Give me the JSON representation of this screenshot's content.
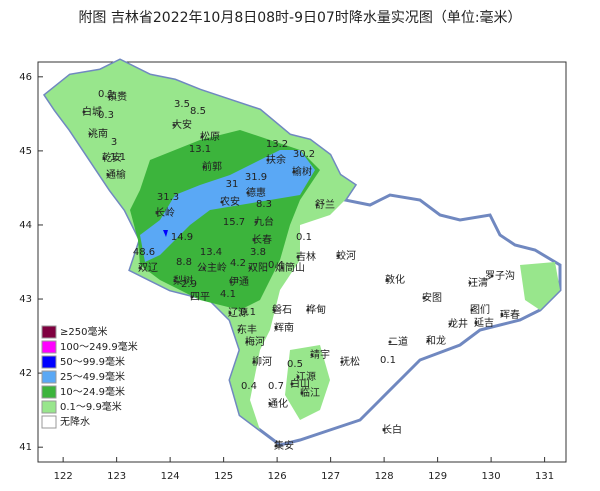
{
  "title": "附图 吉林省2022年10月8日08时-9日07时降水量实况图（单位:毫米）",
  "map": {
    "xlim": [
      121.53,
      131.4
    ],
    "ylim": [
      40.8,
      46.2
    ],
    "xticks": [
      122,
      123,
      124,
      125,
      126,
      127,
      128,
      129,
      130,
      131
    ],
    "yticks": [
      41,
      42,
      43,
      44,
      45,
      46
    ]
  },
  "legend": [
    {
      "label": "≥250毫米",
      "color": "#7f003f"
    },
    {
      "label": "100～249.9毫米",
      "color": "#ff00ff"
    },
    {
      "label": "50～99.9毫米",
      "color": "#0000ff"
    },
    {
      "label": "25～49.9毫米",
      "color": "#5aa8f5"
    },
    {
      "label": "10～24.9毫米",
      "color": "#3cb43c"
    },
    {
      "label": "0.1～9.9毫米",
      "color": "#98e68c"
    },
    {
      "label": "无降水",
      "color": "#ffffff"
    }
  ],
  "places": [
    "镇赉",
    "白城",
    "洮南",
    "大安",
    "乾安",
    "松原",
    "前郭",
    "通榆",
    "扶余",
    "榆树",
    "长岭",
    "农安",
    "德惠",
    "舒兰",
    "九台",
    "长春",
    "双辽",
    "公主岭",
    "梨树",
    "伊通",
    "双阳",
    "吉林",
    "蛟河",
    "敦化",
    "汪清",
    "罗子沟",
    "安图",
    "珲春",
    "图们",
    "龙井",
    "延吉",
    "和龙",
    "四平",
    "辽源",
    "东丰",
    "磐石",
    "桦甸",
    "梅河",
    "柳河",
    "辉南",
    "靖宇",
    "抚松",
    "二道",
    "长白",
    "临江",
    "白山",
    "通化",
    "集安",
    "江源",
    "烟筒山"
  ],
  "values": [
    0.1,
    0.3,
    3.5,
    8.5,
    3,
    1.1,
    13.1,
    13.2,
    30.2,
    31,
    31.9,
    8.3,
    31.3,
    15.7,
    14.9,
    3.8,
    0.1,
    48.6,
    8.8,
    13.4,
    4.2,
    0.4,
    2.9,
    4.1,
    0.1,
    0.1,
    0.4,
    0.7,
    0.5
  ]
}
